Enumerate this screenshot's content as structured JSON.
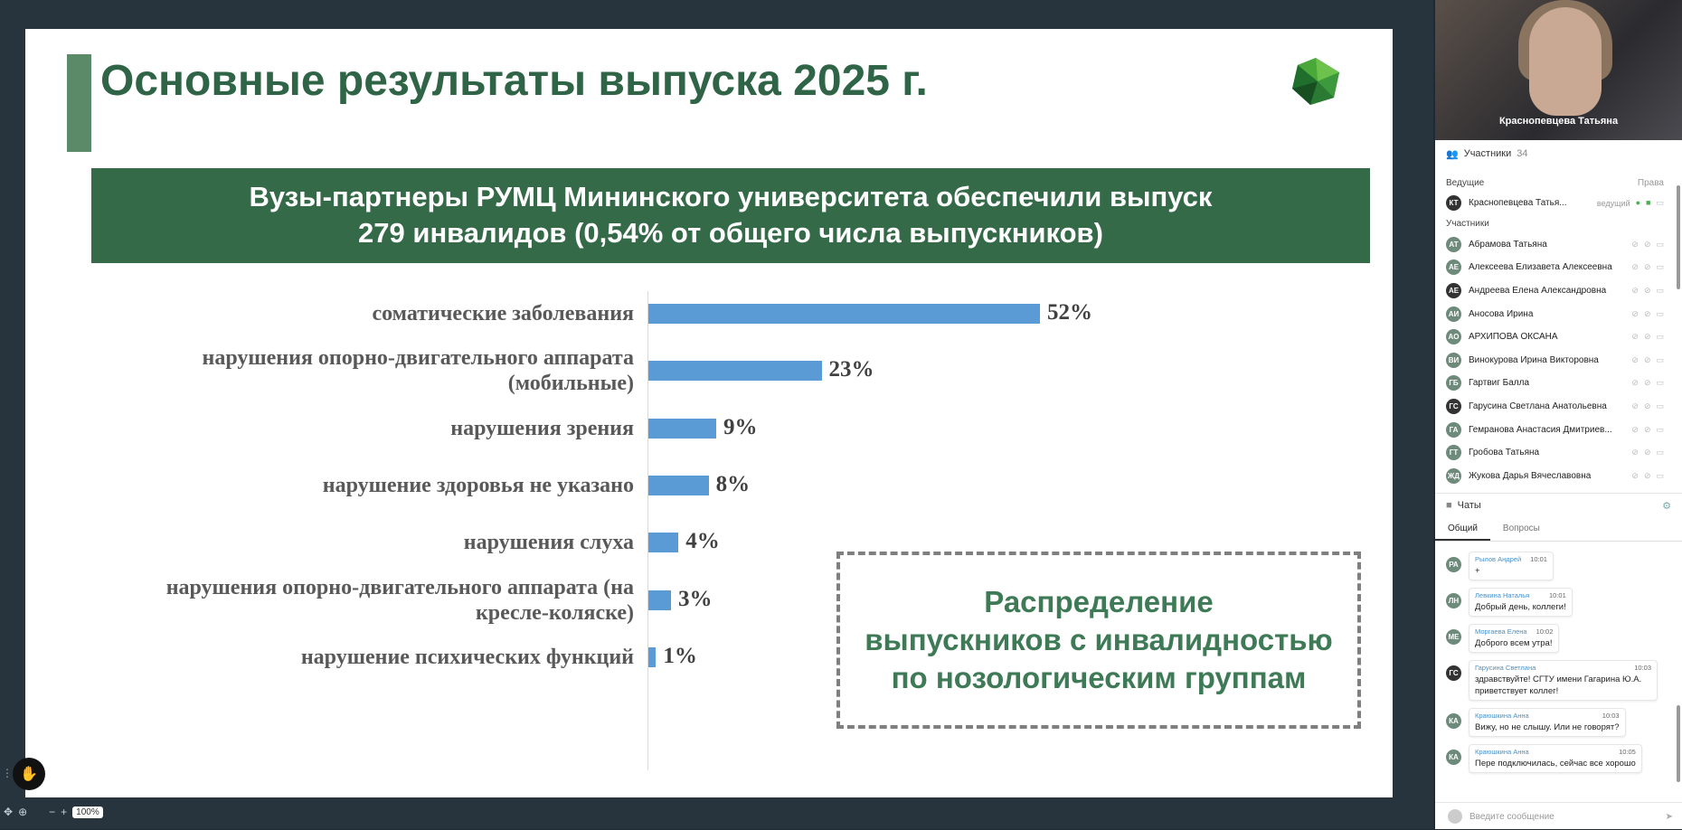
{
  "slide": {
    "title": "Основные результаты выпуска 2025 г.",
    "banner_line1": "Вузы-партнеры РУМЦ Мининского университета обеспечили выпуск",
    "banner_line2": "279 инвалидов (0,54% от общего числа выпускников)",
    "box_text_line1": "Распределение",
    "box_text_line2": "выпускников с инвалидностью",
    "box_text_line3": "по нозологическим группам"
  },
  "chart_data": {
    "type": "bar",
    "orientation": "horizontal",
    "categories": [
      "соматические заболевания",
      "нарушения опорно-двигательного аппарата (мобильные)",
      "нарушения зрения",
      "нарушение здоровья не указано",
      "нарушения слуха",
      "нарушения опорно-двигательного аппарата (на кресле-коляске)",
      "нарушение психических функций"
    ],
    "values": [
      52,
      23,
      9,
      8,
      4,
      3,
      1
    ],
    "value_labels": [
      "52%",
      "23%",
      "9%",
      "8%",
      "4%",
      "3%",
      "1%"
    ],
    "bar_color": "#5b9bd5",
    "grid": false
  },
  "controls": {
    "zoom_label": "100%",
    "zoom_out": "−",
    "zoom_in": "+"
  },
  "video": {
    "name": "Краснопевцева Татьяна"
  },
  "participants": {
    "header": "Участники",
    "count": "34",
    "host_group": "Ведущие",
    "rights_label": "Права",
    "host": {
      "initials": "КТ",
      "name": "Краснопевцева Татья...",
      "role": "ведущий"
    },
    "group_label": "Участники",
    "list": [
      {
        "initials": "АТ",
        "name": "Абрамова Татьяна"
      },
      {
        "initials": "АЕ",
        "name": "Алексеева Елизавета Алексеевна"
      },
      {
        "initials": "АЕ",
        "name": "Андреева Елена Александровна"
      },
      {
        "initials": "АИ",
        "name": "Аносова Ирина"
      },
      {
        "initials": "АО",
        "name": "АРХИПОВА ОКСАНА"
      },
      {
        "initials": "ВИ",
        "name": "Винокурова Ирина Викторовна"
      },
      {
        "initials": "ГБ",
        "name": "Гартвиг Балла"
      },
      {
        "initials": "ГС",
        "name": "Гарусина Светлана Анатольевна"
      },
      {
        "initials": "ГА",
        "name": "Гемранова Анастасия Дмитриев..."
      },
      {
        "initials": "ГТ",
        "name": "Гробова Татьяна"
      },
      {
        "initials": "ЖД",
        "name": "Жукова Дарья Вячеславовна"
      }
    ]
  },
  "chats": {
    "header": "Чаты",
    "tab_general": "Общий",
    "tab_questions": "Вопросы",
    "messages": [
      {
        "initials": "РА",
        "author": "Рылов Андрей",
        "time": "10:01",
        "text": "+"
      },
      {
        "initials": "ЛН",
        "author": "Левкина Наталья",
        "time": "10:01",
        "text": "Добрый день, коллеги!"
      },
      {
        "initials": "МЕ",
        "author": "Моргаева Елена",
        "time": "10:02",
        "text": "Доброго всем утра!"
      },
      {
        "initials": "ГС",
        "author": "Гарусина Светлана",
        "time": "10:03",
        "text": "здравствуйте! СГТУ имени Гагарина Ю.А. приветствует коллег!"
      },
      {
        "initials": "КА",
        "author": "Краюшкина Анна",
        "time": "10:03",
        "text": "Вижу, но не слышу. Или не говорят?"
      },
      {
        "initials": "КА",
        "author": "Краюшкина Анна",
        "time": "10:05",
        "text": "Пере подключилась, сейчас все хорошо"
      }
    ],
    "input_placeholder": "Введите сообщение"
  }
}
